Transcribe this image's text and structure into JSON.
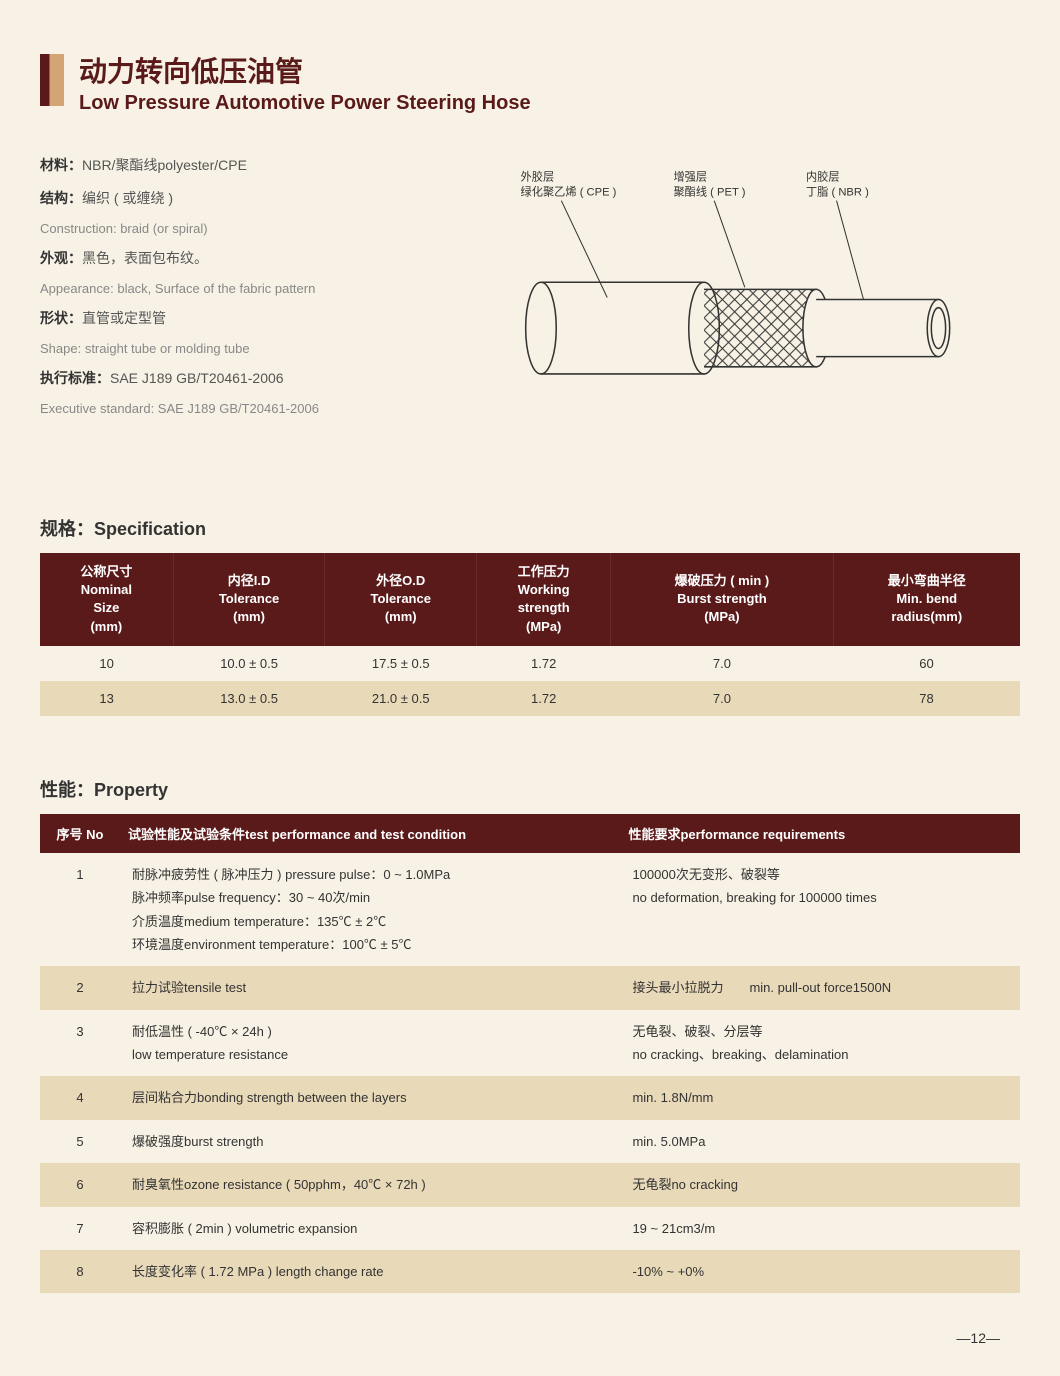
{
  "title": {
    "cn": "动力转向低压油管",
    "en": "Low Pressure Automotive Power Steering Hose"
  },
  "info": [
    {
      "label": "材料：",
      "val": "NBR/聚酯线polyester/CPE",
      "en": ""
    },
    {
      "label": "结构：",
      "val": "编织 ( 或缠绕 )",
      "en": "Construction: braid (or spiral)"
    },
    {
      "label": "外观：",
      "val": "黑色，表面包布纹。",
      "en": "Appearance: black, Surface of the fabric pattern"
    },
    {
      "label": "形状：",
      "val": "直管或定型管",
      "en": "Shape: straight tube or molding tube"
    },
    {
      "label": "执行标准：",
      "val": "SAE J189  GB/T20461-2006",
      "en": "Executive standard: SAE J189  GB/T20461-2006"
    }
  ],
  "diagram_labels": {
    "outer_cn": "外胶层",
    "outer_sub": "绿化聚乙烯 ( CPE )",
    "mid_cn": "增强层",
    "mid_sub": "聚酯线 ( PET )",
    "inner_cn": "内胶层",
    "inner_sub": "丁脂 ( NBR )"
  },
  "spec_heading": "规格：Specification",
  "spec_cols": [
    "公称尺寸\nNominal\nSize\n(mm)",
    "内径I.D\nTolerance\n(mm)",
    "外径O.D\nTolerance\n(mm)",
    "工作压力\nWorking\nstrength\n(MPa)",
    "爆破压力 ( min )\nBurst strength\n(MPa)",
    "最小弯曲半径\nMin. bend\nradius(mm)"
  ],
  "spec_rows": [
    [
      "10",
      "10.0 ± 0.5",
      "17.5 ± 0.5",
      "1.72",
      "7.0",
      "60"
    ],
    [
      "13",
      "13.0 ± 0.5",
      "21.0 ± 0.5",
      "1.72",
      "7.0",
      "78"
    ]
  ],
  "prop_heading": "性能：Property",
  "prop_cols": [
    "序号 No",
    "试验性能及试验条件test performance and test condition",
    "性能要求performance requirements"
  ],
  "prop_rows": [
    {
      "no": "1",
      "cond": "耐脉冲疲劳性 ( 脉冲压力 ) pressure pulse：0 ~ 1.0MPa\n脉冲频率pulse frequency：30 ~ 40次/min\n介质温度medium temperature：135℃ ± 2℃\n环境温度environment temperature：100℃ ± 5℃",
      "req": "100000次无变形、破裂等\nno deformation, breaking for 100000 times"
    },
    {
      "no": "2",
      "cond": "拉力试验tensile test",
      "req": "接头最小拉脱力　　min. pull-out force1500N",
      "alt": true
    },
    {
      "no": "3",
      "cond": "耐低温性 ( -40℃ × 24h )\nlow temperature resistance",
      "req": "无龟裂、破裂、分层等\nno cracking、breaking、delamination"
    },
    {
      "no": "4",
      "cond": "层间粘合力bonding strength between the layers",
      "req": "min. 1.8N/mm",
      "alt": true
    },
    {
      "no": "5",
      "cond": "爆破强度burst strength",
      "req": "min. 5.0MPa"
    },
    {
      "no": "6",
      "cond": "耐臭氧性ozone resistance ( 50pphm，40℃ × 72h )",
      "req": "无龟裂no cracking",
      "alt": true
    },
    {
      "no": "7",
      "cond": "容积膨胀 ( 2min ) volumetric expansion",
      "req": "19 ~ 21cm3/m"
    },
    {
      "no": "8",
      "cond": "长度变化率 ( 1.72 MPa ) length change rate",
      "req": "-10% ~ +0%",
      "alt": true
    }
  ],
  "page_num": "—12—",
  "colors": {
    "header_bg": "#5a1a1a",
    "alt_bg": "#e8d9b8",
    "page_bg": "#f7f2e5"
  }
}
